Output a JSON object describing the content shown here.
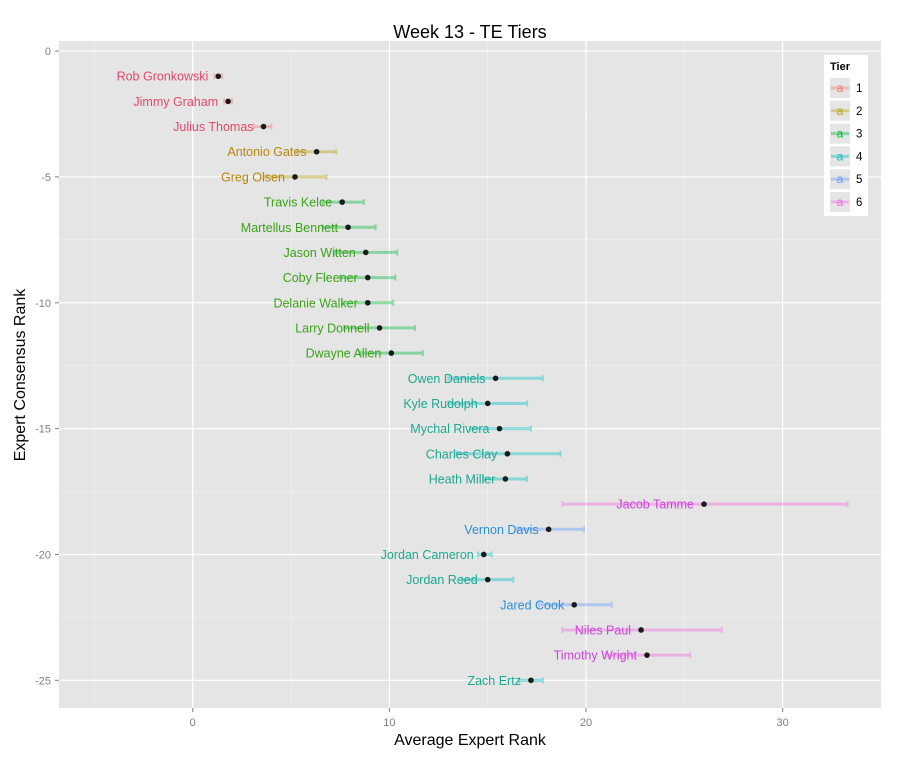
{
  "chart_data": {
    "type": "scatter",
    "title": "Week 13 - TE Tiers",
    "xlabel": "Average Expert Rank",
    "ylabel": "Expert Consensus Rank",
    "xlim": [
      -6.8,
      35
    ],
    "ylim": [
      -26.1,
      0.4
    ],
    "x_ticks": [
      0,
      10,
      20,
      30
    ],
    "y_ticks": [
      0,
      -5,
      -10,
      -15,
      -20,
      -25
    ],
    "grid": true,
    "legend": {
      "title": "Tier",
      "position": "right-top-inside",
      "entries": [
        {
          "key": "1",
          "label": "1",
          "color": "#f8766d"
        },
        {
          "key": "2",
          "label": "2",
          "color": "#b79f00"
        },
        {
          "key": "3",
          "label": "3",
          "color": "#00ba38"
        },
        {
          "key": "4",
          "label": "4",
          "color": "#00bfc4"
        },
        {
          "key": "5",
          "label": "5",
          "color": "#619cff"
        },
        {
          "key": "6",
          "label": "6",
          "color": "#f564e3"
        }
      ]
    },
    "points": [
      {
        "name": "Rob Gronkowski",
        "tier": "1",
        "rank": -1,
        "avg": 1.3,
        "lo": 1.1,
        "hi": 1.5
      },
      {
        "name": "Jimmy Graham",
        "tier": "1",
        "rank": -2,
        "avg": 1.8,
        "lo": 1.6,
        "hi": 2.0
      },
      {
        "name": "Julius Thomas",
        "tier": "1",
        "rank": -3,
        "avg": 3.6,
        "lo": 3.1,
        "hi": 4.0
      },
      {
        "name": "Antonio Gates",
        "tier": "2",
        "rank": -4,
        "avg": 6.3,
        "lo": 5.3,
        "hi": 7.3
      },
      {
        "name": "Greg Olsen",
        "tier": "2",
        "rank": -5,
        "avg": 5.2,
        "lo": 3.6,
        "hi": 6.8
      },
      {
        "name": "Travis Kelce",
        "tier": "3",
        "rank": -6,
        "avg": 7.6,
        "lo": 6.6,
        "hi": 8.7
      },
      {
        "name": "Martellus Bennett",
        "tier": "3",
        "rank": -7,
        "avg": 7.9,
        "lo": 6.6,
        "hi": 9.3
      },
      {
        "name": "Jason Witten",
        "tier": "3",
        "rank": -8,
        "avg": 8.8,
        "lo": 7.2,
        "hi": 10.4
      },
      {
        "name": "Coby Fleener",
        "tier": "3",
        "rank": -9,
        "avg": 8.9,
        "lo": 7.5,
        "hi": 10.3
      },
      {
        "name": "Delanie Walker",
        "tier": "3",
        "rank": -10,
        "avg": 8.9,
        "lo": 7.6,
        "hi": 10.2
      },
      {
        "name": "Larry Donnell",
        "tier": "3",
        "rank": -11,
        "avg": 9.5,
        "lo": 7.7,
        "hi": 11.3
      },
      {
        "name": "Dwayne Allen",
        "tier": "3",
        "rank": -12,
        "avg": 10.1,
        "lo": 8.5,
        "hi": 11.7
      },
      {
        "name": "Owen Daniels",
        "tier": "4",
        "rank": -13,
        "avg": 15.4,
        "lo": 13.0,
        "hi": 17.8
      },
      {
        "name": "Kyle Rudolph",
        "tier": "4",
        "rank": -14,
        "avg": 15.0,
        "lo": 13.0,
        "hi": 17.0
      },
      {
        "name": "Mychal Rivera",
        "tier": "4",
        "rank": -15,
        "avg": 15.6,
        "lo": 14.1,
        "hi": 17.2
      },
      {
        "name": "Charles Clay",
        "tier": "4",
        "rank": -16,
        "avg": 16.0,
        "lo": 13.4,
        "hi": 18.7
      },
      {
        "name": "Heath Miller",
        "tier": "4",
        "rank": -17,
        "avg": 15.9,
        "lo": 14.8,
        "hi": 17.0
      },
      {
        "name": "Jacob Tamme",
        "tier": "6",
        "rank": -18,
        "avg": 26.0,
        "lo": 18.8,
        "hi": 33.3
      },
      {
        "name": "Vernon Davis",
        "tier": "5",
        "rank": -19,
        "avg": 18.1,
        "lo": 16.5,
        "hi": 19.9
      },
      {
        "name": "Jordan Cameron",
        "tier": "4",
        "rank": -20,
        "avg": 14.8,
        "lo": 14.5,
        "hi": 15.2
      },
      {
        "name": "Jordan Reed",
        "tier": "4",
        "rank": -21,
        "avg": 15.0,
        "lo": 13.7,
        "hi": 16.3
      },
      {
        "name": "Jared Cook",
        "tier": "5",
        "rank": -22,
        "avg": 19.4,
        "lo": 17.6,
        "hi": 21.3
      },
      {
        "name": "Niles Paul",
        "tier": "6",
        "rank": -23,
        "avg": 22.8,
        "lo": 18.8,
        "hi": 26.9
      },
      {
        "name": "Timothy Wright",
        "tier": "6",
        "rank": -24,
        "avg": 23.1,
        "lo": 21.0,
        "hi": 25.3
      },
      {
        "name": "Zach Ertz",
        "tier": "4",
        "rank": -25,
        "avg": 17.2,
        "lo": 16.6,
        "hi": 17.8
      }
    ]
  }
}
